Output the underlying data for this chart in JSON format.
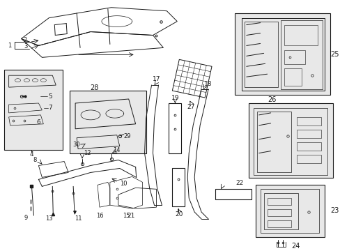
{
  "background_color": "#ffffff",
  "line_color": "#1a1a1a",
  "gray_fill": "#d8d8d8",
  "light_gray": "#e8e8e8"
}
